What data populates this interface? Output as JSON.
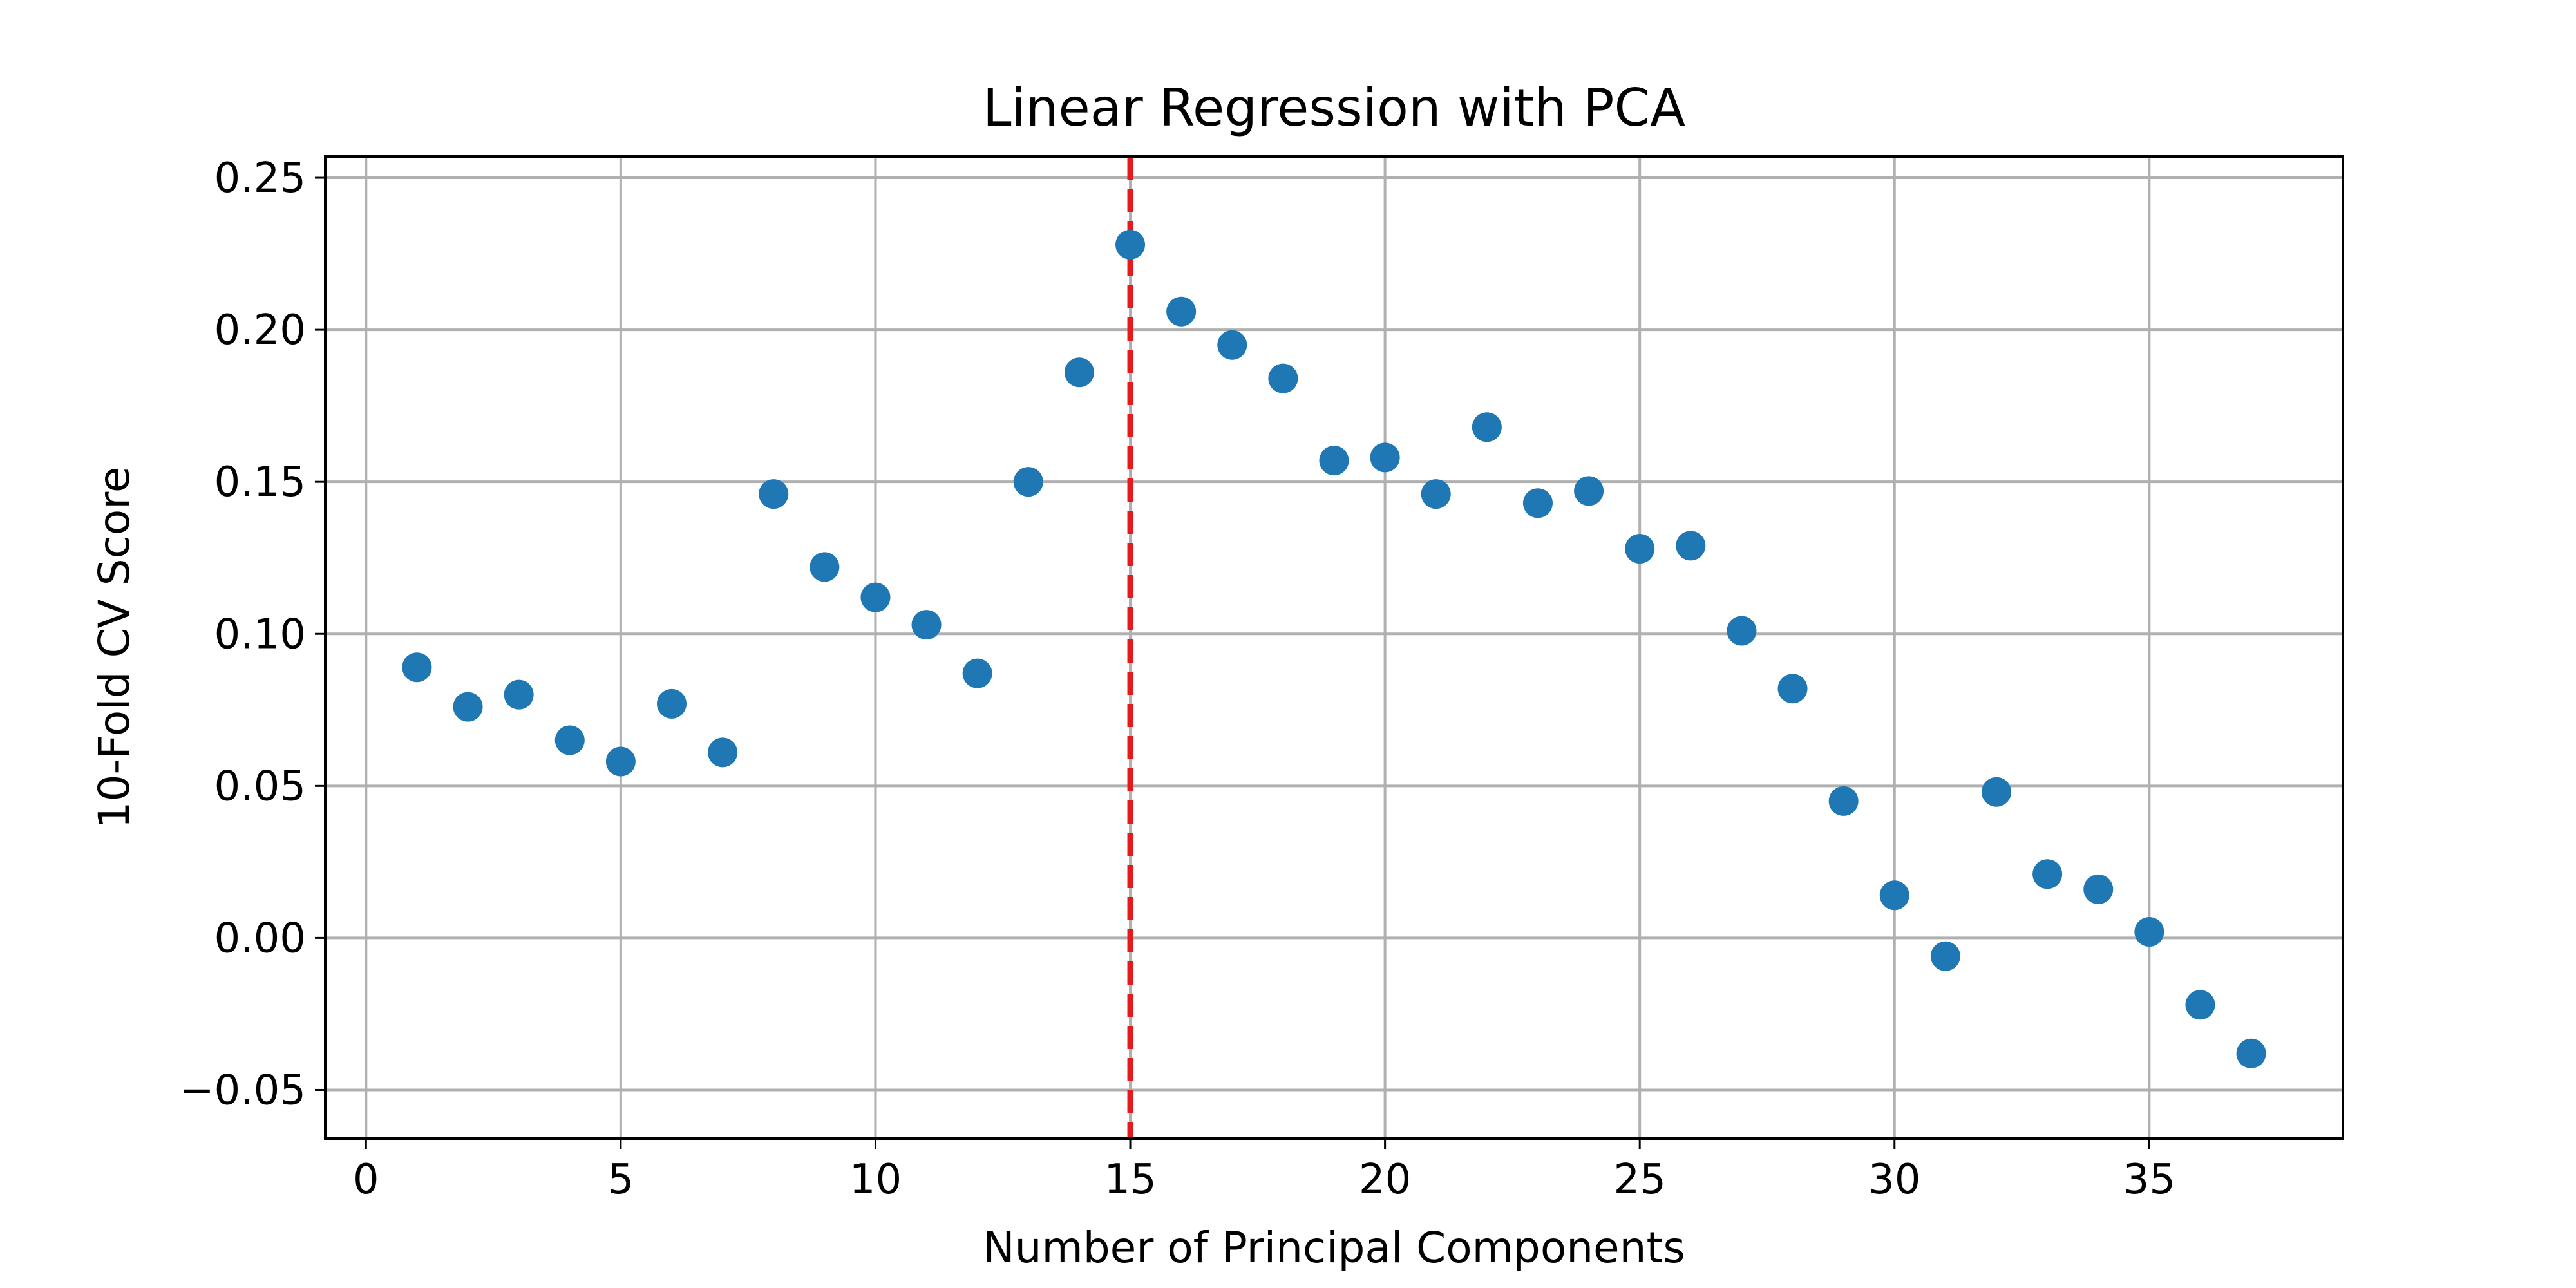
{
  "chart_data": {
    "type": "scatter",
    "title": "Linear Regression with PCA",
    "xlabel": "Number of Principal Components",
    "ylabel": "10-Fold CV Score",
    "xlim": [
      -0.8,
      38.8
    ],
    "ylim": [
      -0.066,
      0.257
    ],
    "x_ticks": [
      0,
      5,
      10,
      15,
      20,
      25,
      30,
      35
    ],
    "x_tick_labels": [
      "0",
      "5",
      "10",
      "15",
      "20",
      "25",
      "30",
      "35"
    ],
    "y_ticks": [
      -0.05,
      0.0,
      0.05,
      0.1,
      0.15,
      0.2,
      0.25
    ],
    "y_tick_labels": [
      "−0.05",
      "0.00",
      "0.05",
      "0.10",
      "0.15",
      "0.20",
      "0.25"
    ],
    "grid": true,
    "series": [
      {
        "color": "#1f77b4",
        "x": [
          1,
          2,
          3,
          4,
          5,
          6,
          7,
          8,
          9,
          10,
          11,
          12,
          13,
          14,
          15,
          16,
          17,
          18,
          19,
          20,
          21,
          22,
          23,
          24,
          25,
          26,
          27,
          28,
          29,
          30,
          31,
          32,
          33,
          34,
          35,
          36,
          37
        ],
        "y": [
          0.089,
          0.076,
          0.08,
          0.065,
          0.058,
          0.077,
          0.061,
          0.146,
          0.122,
          0.112,
          0.103,
          0.087,
          0.15,
          0.186,
          0.228,
          0.206,
          0.195,
          0.184,
          0.157,
          0.158,
          0.146,
          0.168,
          0.143,
          0.147,
          0.128,
          0.129,
          0.101,
          0.082,
          0.045,
          0.014,
          -0.006,
          0.048,
          0.021,
          0.016,
          0.002,
          -0.022,
          -0.038
        ]
      }
    ],
    "reference_line": {
      "orientation": "vertical",
      "x": 15,
      "color": "#e41a1c",
      "style": "dashed"
    }
  }
}
